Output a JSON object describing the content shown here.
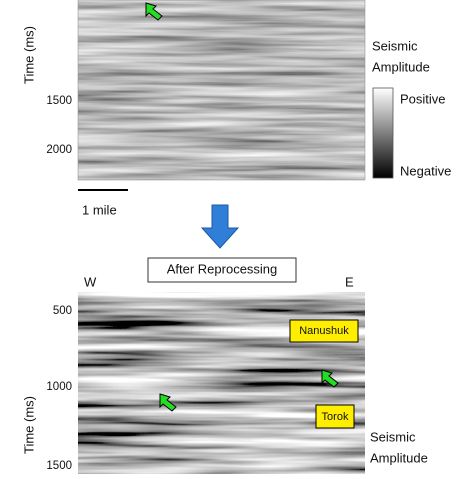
{
  "top_panel": {
    "y_axis_label": "Time (ms)",
    "y_ticks": [
      "1500",
      "2000"
    ],
    "colorbar_title": [
      "Seismic",
      "Amplitude"
    ],
    "colorbar_labels": {
      "positive": "Positive",
      "negative": "Negative"
    },
    "scale_bar": "1 mile"
  },
  "step_label": "After Reprocessing",
  "bottom_panel": {
    "left_label": "W",
    "right_label": "E",
    "y_axis_label": "Time (ms)",
    "y_ticks": [
      "500",
      "1000",
      "1500"
    ],
    "annotations": [
      "Nanushuk",
      "Torok"
    ],
    "colorbar_title": [
      "Seismic",
      "Amplitude"
    ]
  }
}
